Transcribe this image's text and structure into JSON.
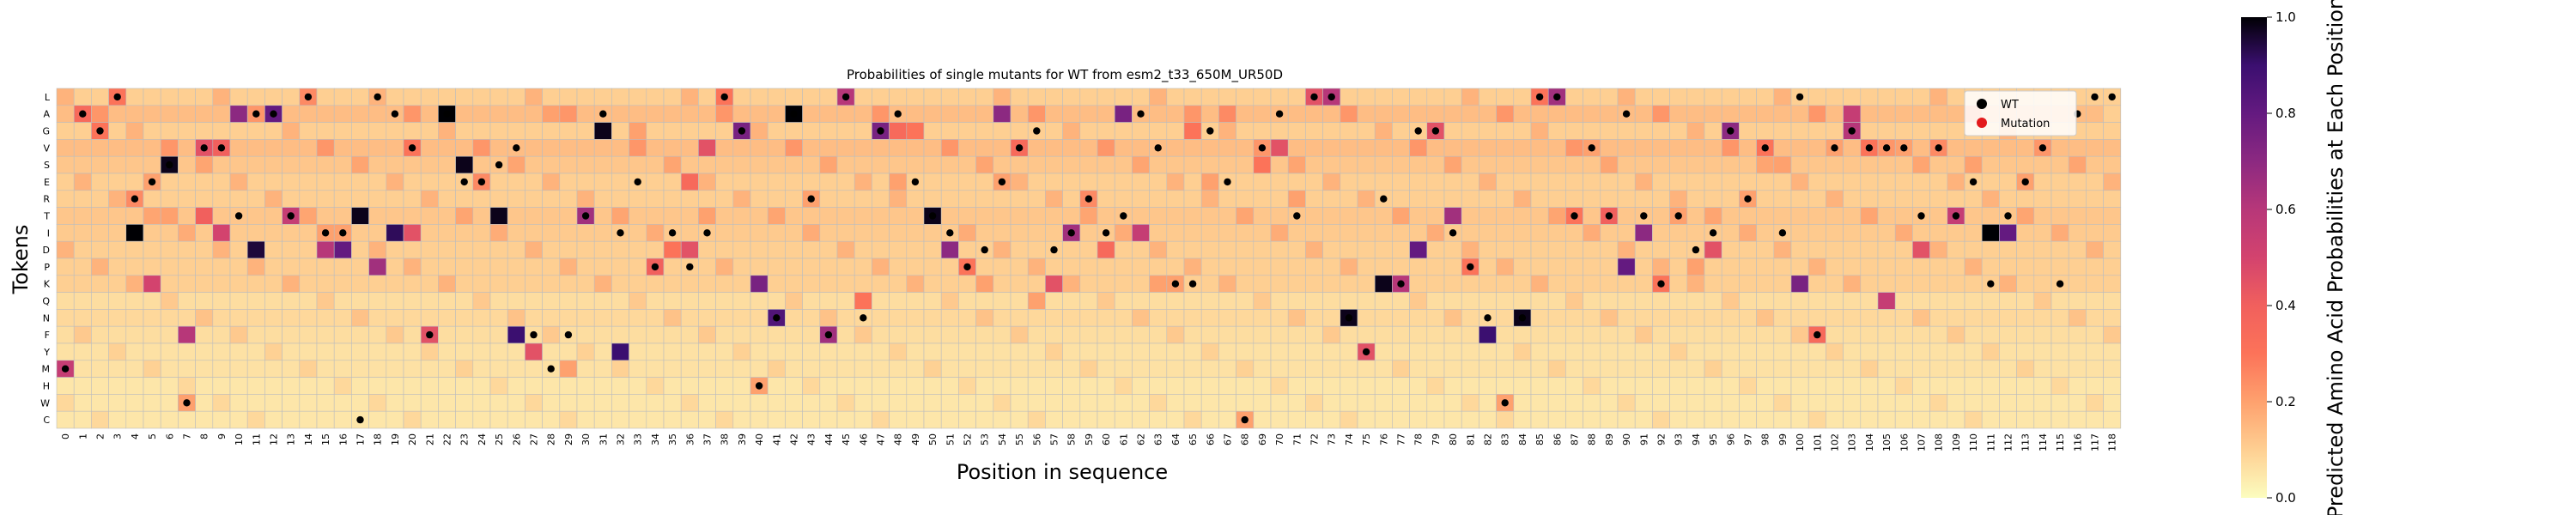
{
  "chart_data": {
    "type": "heatmap",
    "title": "Probabilities of single mutants for WT from esm2_t33_650M_UR50D",
    "xlabel": "Position in sequence",
    "ylabel": "Tokens",
    "positions": [
      0,
      1,
      2,
      3,
      4,
      5,
      6,
      7,
      8,
      9,
      10,
      11,
      12,
      13,
      14,
      15,
      16,
      17,
      18,
      19,
      20,
      21,
      22,
      23,
      24,
      25,
      26,
      27,
      28,
      29,
      30,
      31,
      32,
      33,
      34,
      35,
      36,
      37,
      38,
      39,
      40,
      41,
      42,
      43,
      44,
      45,
      46,
      47,
      48,
      49,
      50,
      51,
      52,
      53,
      54,
      55,
      56,
      57,
      58,
      59,
      60,
      61,
      62,
      63,
      64,
      65,
      66,
      67,
      68,
      69,
      70,
      71,
      72,
      73,
      74,
      75,
      76,
      77,
      78,
      79,
      80,
      81,
      82,
      83,
      84,
      85,
      86,
      87,
      88,
      89,
      90,
      91,
      92,
      93,
      94,
      95,
      96,
      97,
      98,
      99,
      100,
      101,
      102,
      103,
      104,
      105,
      106,
      107,
      108,
      109,
      110,
      111,
      112,
      113,
      114,
      115,
      116,
      117,
      118
    ],
    "tokens": [
      "L",
      "A",
      "G",
      "V",
      "S",
      "E",
      "R",
      "T",
      "I",
      "D",
      "P",
      "K",
      "Q",
      "N",
      "F",
      "Y",
      "M",
      "H",
      "W",
      "C"
    ],
    "colorbar": {
      "label": "Predicted Amino Acid Probabilities at Each Position",
      "min": 0.0,
      "max": 1.0,
      "ticks": [
        "0.0",
        "0.2",
        "0.4",
        "0.6",
        "0.8",
        "1.0"
      ],
      "colormap": "magma_r"
    },
    "legend": [
      {
        "label": "WT",
        "color": "#000000"
      },
      {
        "label": "Mutation",
        "color": "#e31a1c"
      }
    ],
    "legend_placement": "top-right",
    "wt_tokens": [
      "M",
      "A",
      "G",
      "L",
      "R",
      "E",
      "S",
      "W",
      "V",
      "V",
      "T",
      "A",
      "A",
      "T",
      "L",
      "I",
      "I",
      "C",
      "L",
      "A",
      "V",
      "F",
      "A",
      "E",
      "E",
      "S",
      "V",
      "F",
      "M",
      "F",
      "T",
      "A",
      "I",
      "E",
      "P",
      "I",
      "P",
      "I",
      "L",
      "G",
      "H",
      "N",
      "A",
      "R",
      "F",
      "L",
      "N",
      "G",
      "A",
      "E",
      "T",
      "I",
      "P",
      "D",
      "E",
      "V",
      "G",
      "D",
      "I",
      "R",
      "I",
      "T",
      "A",
      "V",
      "K",
      "K",
      "G",
      "E",
      "C",
      "V",
      "A",
      "T",
      "L",
      "L",
      "N",
      "Y",
      "R",
      "K",
      "G",
      "G",
      "I",
      "P",
      "N",
      "W",
      "N",
      "L",
      "L",
      "T",
      "V",
      "T",
      "A",
      "T",
      "K",
      "T",
      "D",
      "I",
      "G",
      "R",
      "V",
      "I",
      "L",
      "F",
      "V",
      "G",
      "V",
      "V",
      "V",
      "T",
      "V",
      "T",
      "E",
      "K",
      "T",
      "E",
      "V",
      "K",
      "A",
      "L",
      "L"
    ],
    "row_defaults": [
      0.1,
      0.14,
      0.1,
      0.14,
      0.12,
      0.1,
      0.1,
      0.12,
      0.11,
      0.1,
      0.1,
      0.1,
      0.07,
      0.08,
      0.07,
      0.06,
      0.06,
      0.05,
      0.05,
      0.05
    ],
    "peaks": [
      {
        "p": 0,
        "t": "M",
        "v": 0.55
      },
      {
        "p": 1,
        "t": "A",
        "v": 0.35
      },
      {
        "p": 2,
        "t": "G",
        "v": 0.3
      },
      {
        "p": 3,
        "t": "L",
        "v": 0.3
      },
      {
        "p": 4,
        "t": "R",
        "v": 0.25
      },
      {
        "p": 4,
        "t": "I",
        "v": 1.0
      },
      {
        "p": 5,
        "t": "E",
        "v": 0.2
      },
      {
        "p": 5,
        "t": "K",
        "v": 0.5
      },
      {
        "p": 6,
        "t": "S",
        "v": 0.98
      },
      {
        "p": 6,
        "t": "T",
        "v": 0.2
      },
      {
        "p": 7,
        "t": "W",
        "v": 0.2
      },
      {
        "p": 7,
        "t": "F",
        "v": 0.6
      },
      {
        "p": 8,
        "t": "V",
        "v": 0.45
      },
      {
        "p": 8,
        "t": "T",
        "v": 0.4
      },
      {
        "p": 9,
        "t": "V",
        "v": 0.4
      },
      {
        "p": 9,
        "t": "I",
        "v": 0.5
      },
      {
        "p": 10,
        "t": "A",
        "v": 0.7
      },
      {
        "p": 11,
        "t": "D",
        "v": 0.95
      },
      {
        "p": 12,
        "t": "A",
        "v": 0.8
      },
      {
        "p": 13,
        "t": "T",
        "v": 0.55
      },
      {
        "p": 14,
        "t": "L",
        "v": 0.25
      },
      {
        "p": 15,
        "t": "I",
        "v": 0.2
      },
      {
        "p": 15,
        "t": "D",
        "v": 0.6
      },
      {
        "p": 16,
        "t": "I",
        "v": 0.2
      },
      {
        "p": 16,
        "t": "D",
        "v": 0.8
      },
      {
        "p": 17,
        "t": "T",
        "v": 0.98
      },
      {
        "p": 18,
        "t": "P",
        "v": 0.65
      },
      {
        "p": 19,
        "t": "I",
        "v": 0.92
      },
      {
        "p": 20,
        "t": "V",
        "v": 0.3
      },
      {
        "p": 20,
        "t": "I",
        "v": 0.45
      },
      {
        "p": 21,
        "t": "F",
        "v": 0.45
      },
      {
        "p": 22,
        "t": "A",
        "v": 1.0
      },
      {
        "p": 23,
        "t": "S",
        "v": 0.98
      },
      {
        "p": 24,
        "t": "E",
        "v": 0.25
      },
      {
        "p": 25,
        "t": "T",
        "v": 0.98
      },
      {
        "p": 26,
        "t": "F",
        "v": 0.9
      },
      {
        "p": 27,
        "t": "Y",
        "v": 0.45
      },
      {
        "p": 28,
        "t": "A",
        "v": 0.2
      },
      {
        "p": 29,
        "t": "M",
        "v": 0.2
      },
      {
        "p": 30,
        "t": "T",
        "v": 0.65
      },
      {
        "p": 31,
        "t": "G",
        "v": 0.98
      },
      {
        "p": 32,
        "t": "Y",
        "v": 0.9
      },
      {
        "p": 33,
        "t": "G",
        "v": 0.2
      },
      {
        "p": 34,
        "t": "P",
        "v": 0.4
      },
      {
        "p": 35,
        "t": "D",
        "v": 0.3
      },
      {
        "p": 36,
        "t": "D",
        "v": 0.45
      },
      {
        "p": 36,
        "t": "E",
        "v": 0.35
      },
      {
        "p": 37,
        "t": "V",
        "v": 0.45
      },
      {
        "p": 37,
        "t": "T",
        "v": 0.2
      },
      {
        "p": 38,
        "t": "L",
        "v": 0.3
      },
      {
        "p": 39,
        "t": "G",
        "v": 0.75
      },
      {
        "p": 40,
        "t": "K",
        "v": 0.75
      },
      {
        "p": 40,
        "t": "H",
        "v": 0.2
      },
      {
        "p": 41,
        "t": "N",
        "v": 0.85
      },
      {
        "p": 42,
        "t": "A",
        "v": 1.0
      },
      {
        "p": 43,
        "t": "R",
        "v": 0.2
      },
      {
        "p": 44,
        "t": "F",
        "v": 0.65
      },
      {
        "p": 45,
        "t": "L",
        "v": 0.6
      },
      {
        "p": 46,
        "t": "Q",
        "v": 0.3
      },
      {
        "p": 47,
        "t": "G",
        "v": 0.75
      },
      {
        "p": 48,
        "t": "G",
        "v": 0.35
      },
      {
        "p": 48,
        "t": "E",
        "v": 0.2
      },
      {
        "p": 49,
        "t": "G",
        "v": 0.3
      },
      {
        "p": 50,
        "t": "T",
        "v": 0.98
      },
      {
        "p": 51,
        "t": "D",
        "v": 0.7
      },
      {
        "p": 52,
        "t": "P",
        "v": 0.3
      },
      {
        "p": 53,
        "t": "K",
        "v": 0.2
      },
      {
        "p": 54,
        "t": "E",
        "v": 0.2
      },
      {
        "p": 54,
        "t": "A",
        "v": 0.7
      },
      {
        "p": 55,
        "t": "V",
        "v": 0.35
      },
      {
        "p": 56,
        "t": "Q",
        "v": 0.2
      },
      {
        "p": 57,
        "t": "K",
        "v": 0.45
      },
      {
        "p": 58,
        "t": "I",
        "v": 0.65
      },
      {
        "p": 59,
        "t": "R",
        "v": 0.25
      },
      {
        "p": 60,
        "t": "D",
        "v": 0.35
      },
      {
        "p": 61,
        "t": "A",
        "v": 0.75
      },
      {
        "p": 62,
        "t": "I",
        "v": 0.55
      },
      {
        "p": 63,
        "t": "K",
        "v": 0.2
      },
      {
        "p": 64,
        "t": "K",
        "v": 0.2
      },
      {
        "p": 65,
        "t": "G",
        "v": 0.3
      },
      {
        "p": 66,
        "t": "E",
        "v": 0.2
      },
      {
        "p": 67,
        "t": "A",
        "v": 0.25
      },
      {
        "p": 68,
        "t": "C",
        "v": 0.2
      },
      {
        "p": 69,
        "t": "S",
        "v": 0.3
      },
      {
        "p": 70,
        "t": "V",
        "v": 0.45
      },
      {
        "p": 71,
        "t": "R",
        "v": 0.2
      },
      {
        "p": 72,
        "t": "L",
        "v": 0.45
      },
      {
        "p": 73,
        "t": "L",
        "v": 0.6
      },
      {
        "p": 74,
        "t": "N",
        "v": 0.98
      },
      {
        "p": 75,
        "t": "Y",
        "v": 0.45
      },
      {
        "p": 76,
        "t": "K",
        "v": 0.98
      },
      {
        "p": 77,
        "t": "K",
        "v": 0.6
      },
      {
        "p": 78,
        "t": "D",
        "v": 0.8
      },
      {
        "p": 79,
        "t": "G",
        "v": 0.45
      },
      {
        "p": 80,
        "t": "T",
        "v": 0.65
      },
      {
        "p": 81,
        "t": "P",
        "v": 0.3
      },
      {
        "p": 82,
        "t": "F",
        "v": 0.9
      },
      {
        "p": 83,
        "t": "W",
        "v": 0.2
      },
      {
        "p": 84,
        "t": "N",
        "v": 0.98
      },
      {
        "p": 85,
        "t": "L",
        "v": 0.3
      },
      {
        "p": 86,
        "t": "L",
        "v": 0.65
      },
      {
        "p": 87,
        "t": "T",
        "v": 0.3
      },
      {
        "p": 88,
        "t": "V",
        "v": 0.2
      },
      {
        "p": 89,
        "t": "T",
        "v": 0.4
      },
      {
        "p": 90,
        "t": "P",
        "v": 0.8
      },
      {
        "p": 91,
        "t": "I",
        "v": 0.7
      },
      {
        "p": 92,
        "t": "K",
        "v": 0.3
      },
      {
        "p": 93,
        "t": "T",
        "v": 0.2
      },
      {
        "p": 94,
        "t": "P",
        "v": 0.2
      },
      {
        "p": 95,
        "t": "D",
        "v": 0.45
      },
      {
        "p": 96,
        "t": "G",
        "v": 0.7
      },
      {
        "p": 97,
        "t": "R",
        "v": 0.2
      },
      {
        "p": 98,
        "t": "V",
        "v": 0.3
      },
      {
        "p": 99,
        "t": "S",
        "v": 0.2
      },
      {
        "p": 100,
        "t": "K",
        "v": 0.75
      },
      {
        "p": 101,
        "t": "F",
        "v": 0.35
      },
      {
        "p": 102,
        "t": "V",
        "v": 0.2
      },
      {
        "p": 103,
        "t": "G",
        "v": 0.6
      },
      {
        "p": 103,
        "t": "A",
        "v": 0.55
      },
      {
        "p": 104,
        "t": "V",
        "v": 0.3
      },
      {
        "p": 105,
        "t": "Q",
        "v": 0.55
      },
      {
        "p": 106,
        "t": "V",
        "v": 0.2
      },
      {
        "p": 107,
        "t": "D",
        "v": 0.45
      },
      {
        "p": 108,
        "t": "V",
        "v": 0.25
      },
      {
        "p": 109,
        "t": "T",
        "v": 0.55
      },
      {
        "p": 110,
        "t": "S",
        "v": 0.2
      },
      {
        "p": 111,
        "t": "I",
        "v": 1.0
      },
      {
        "p": 112,
        "t": "I",
        "v": 0.8
      },
      {
        "p": 113,
        "t": "E",
        "v": 0.2
      },
      {
        "p": 114,
        "t": "E",
        "v": 0.1
      },
      {
        "p": 115,
        "t": "L",
        "v": 0.1
      },
      {
        "p": 116,
        "t": "K",
        "v": 0.1
      },
      {
        "p": 117,
        "t": "L",
        "v": 0.1
      },
      {
        "p": 118,
        "t": "A",
        "v": 0.1
      }
    ]
  }
}
